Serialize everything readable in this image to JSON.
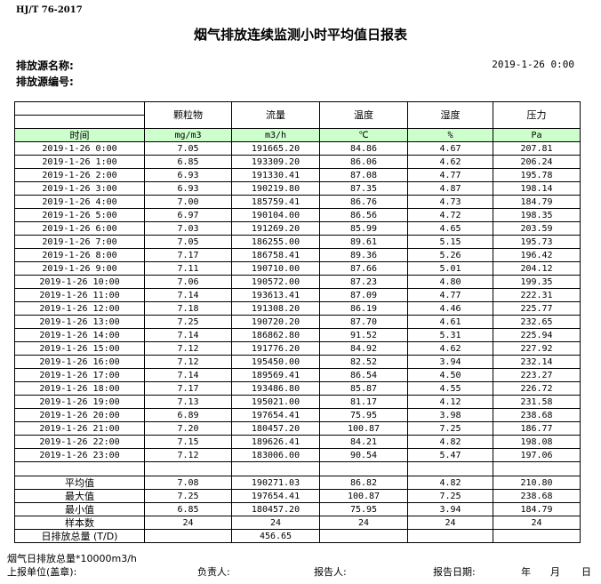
{
  "standard": "HJ/T  76-2017",
  "title": "烟气排放连续监测小时平均值日报表",
  "source_name_label": "排放源名称:",
  "source_code_label": "排放源编号:",
  "report_datetime": "2019-1-26 0:00",
  "columns": [
    "颗粒物",
    "流量",
    "温度",
    "湿度",
    "压力"
  ],
  "units": {
    "time_label": "时间",
    "values": [
      "mg/m3",
      "m3/h",
      "℃",
      "%",
      "Pa"
    ]
  },
  "header_color": "#ccffcc",
  "rows": [
    [
      "2019-1-26 0:00",
      "7.05",
      "191665.20",
      "84.86",
      "4.67",
      "207.81"
    ],
    [
      "2019-1-26 1:00",
      "6.85",
      "193309.20",
      "86.06",
      "4.62",
      "206.24"
    ],
    [
      "2019-1-26 2:00",
      "6.93",
      "191330.41",
      "87.08",
      "4.77",
      "195.78"
    ],
    [
      "2019-1-26 3:00",
      "6.93",
      "190219.80",
      "87.35",
      "4.87",
      "198.14"
    ],
    [
      "2019-1-26 4:00",
      "7.00",
      "185759.41",
      "86.76",
      "4.73",
      "184.79"
    ],
    [
      "2019-1-26 5:00",
      "6.97",
      "190104.00",
      "86.56",
      "4.72",
      "198.35"
    ],
    [
      "2019-1-26 6:00",
      "7.03",
      "191269.20",
      "85.99",
      "4.65",
      "203.59"
    ],
    [
      "2019-1-26 7:00",
      "7.05",
      "186255.00",
      "89.61",
      "5.15",
      "195.73"
    ],
    [
      "2019-1-26 8:00",
      "7.17",
      "186758.41",
      "89.36",
      "5.26",
      "196.42"
    ],
    [
      "2019-1-26 9:00",
      "7.11",
      "190710.00",
      "87.66",
      "5.01",
      "204.12"
    ],
    [
      "2019-1-26 10:00",
      "7.06",
      "190572.00",
      "87.23",
      "4.80",
      "199.35"
    ],
    [
      "2019-1-26 11:00",
      "7.14",
      "193613.41",
      "87.09",
      "4.77",
      "222.31"
    ],
    [
      "2019-1-26 12:00",
      "7.18",
      "191308.20",
      "86.19",
      "4.46",
      "225.77"
    ],
    [
      "2019-1-26 13:00",
      "7.25",
      "190720.20",
      "87.70",
      "4.61",
      "232.65"
    ],
    [
      "2019-1-26 14:00",
      "7.14",
      "186862.80",
      "91.52",
      "5.31",
      "225.94"
    ],
    [
      "2019-1-26 15:00",
      "7.12",
      "191776.20",
      "84.92",
      "4.62",
      "227.92"
    ],
    [
      "2019-1-26 16:00",
      "7.12",
      "195450.00",
      "82.52",
      "3.94",
      "232.14"
    ],
    [
      "2019-1-26 17:00",
      "7.14",
      "189569.41",
      "86.54",
      "4.50",
      "223.27"
    ],
    [
      "2019-1-26 18:00",
      "7.17",
      "193486.80",
      "85.87",
      "4.55",
      "226.72"
    ],
    [
      "2019-1-26 19:00",
      "7.13",
      "195021.00",
      "81.17",
      "4.12",
      "231.58"
    ],
    [
      "2019-1-26 20:00",
      "6.89",
      "197654.41",
      "75.95",
      "3.98",
      "238.68"
    ],
    [
      "2019-1-26 21:00",
      "7.20",
      "180457.20",
      "100.87",
      "7.25",
      "186.77"
    ],
    [
      "2019-1-26 22:00",
      "7.15",
      "189626.41",
      "84.21",
      "4.82",
      "198.08"
    ],
    [
      "2019-1-26 23:00",
      "7.12",
      "183006.00",
      "90.54",
      "5.47",
      "197.06"
    ]
  ],
  "summary": [
    [
      "平均值",
      "7.08",
      "190271.03",
      "86.82",
      "4.82",
      "210.80"
    ],
    [
      "最大值",
      "7.25",
      "197654.41",
      "100.87",
      "7.25",
      "238.68"
    ],
    [
      "最小值",
      "6.85",
      "180457.20",
      "75.95",
      "3.94",
      "184.79"
    ],
    [
      "样本数",
      "24",
      "24",
      "24",
      "24",
      "24"
    ],
    [
      "日排放总量 (T/D)",
      "",
      "456.65",
      "",
      "",
      ""
    ]
  ],
  "footer": {
    "note": "烟气日排放总量*10000m3/h",
    "unit_label": "上报单位(盖章):",
    "responsible_label": "负责人:",
    "reporter_label": "报告人:",
    "date_label": "报告日期:",
    "year": "年",
    "month": "月",
    "day": "日"
  }
}
